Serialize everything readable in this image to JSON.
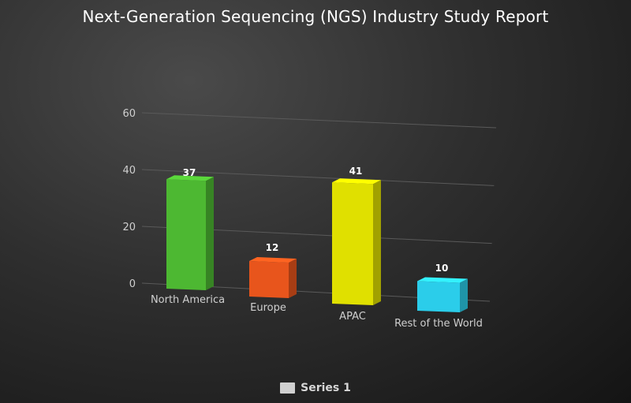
{
  "chart_data": {
    "type": "bar",
    "title": "Next-Generation Sequencing (NGS) Industry Study Report",
    "categories": [
      "North America",
      "Europe",
      "APAC",
      "Rest of the World"
    ],
    "series": [
      {
        "name": "Series 1",
        "values": [
          37,
          12,
          41,
          10
        ],
        "colors": [
          "#4db832",
          "#e8551c",
          "#e0e000",
          "#2bcdea"
        ]
      }
    ],
    "y_ticks": [
      "0",
      "20",
      "40",
      "60"
    ],
    "ylim": [
      0,
      60
    ],
    "xlabel": "",
    "ylabel": "",
    "grid": true,
    "legend_position": "bottom",
    "three_d": true
  }
}
